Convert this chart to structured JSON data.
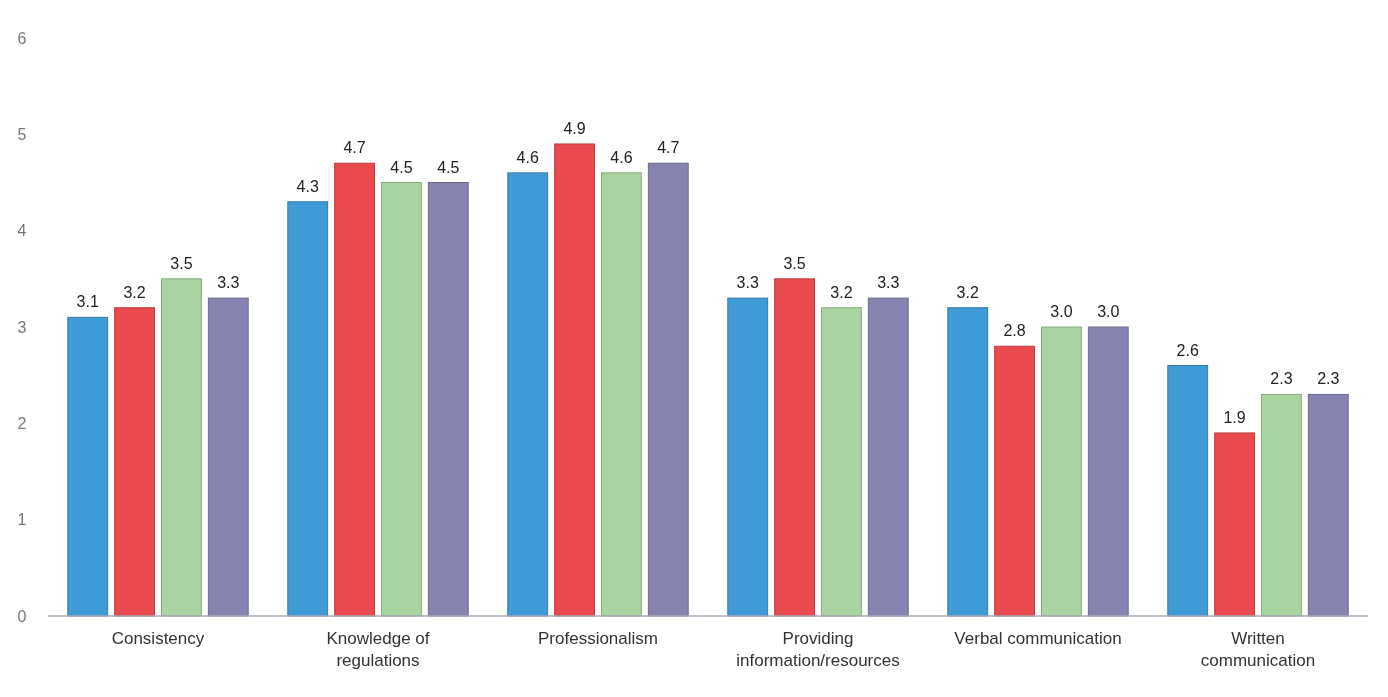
{
  "chart_data": {
    "type": "bar",
    "categories": [
      "Consistency",
      "Knowledge of regulations",
      "Professionalism",
      "Providing information/resources",
      "Verbal communication",
      "Written communication"
    ],
    "series": [
      {
        "color": "#3f9ad6",
        "values": [
          3.1,
          4.3,
          4.6,
          3.3,
          3.2,
          2.6
        ],
        "value_labels": [
          "3.1",
          "4.3",
          "4.6",
          "3.3",
          "3.2",
          "2.6"
        ]
      },
      {
        "color": "#e84a4e",
        "values": [
          3.2,
          4.7,
          4.9,
          3.5,
          2.8,
          1.9
        ],
        "value_labels": [
          "3.2",
          "4.7",
          "4.9",
          "3.5",
          "2.8",
          "1.9"
        ]
      },
      {
        "color": "#a9d3a0",
        "values": [
          3.5,
          4.5,
          4.6,
          3.2,
          3.0,
          2.3
        ],
        "value_labels": [
          "3.5",
          "4.5",
          "4.6",
          "3.2",
          "3.0",
          "2.3"
        ]
      },
      {
        "color": "#8783b0",
        "values": [
          3.3,
          4.5,
          4.7,
          3.3,
          3.0,
          2.3
        ],
        "value_labels": [
          "3.3",
          "4.5",
          "4.7",
          "3.3",
          "3.0",
          "2.3"
        ]
      }
    ],
    "ylim": [
      0,
      6
    ],
    "yticks": [
      0,
      1,
      2,
      3,
      4,
      5,
      6
    ],
    "grid": false
  }
}
